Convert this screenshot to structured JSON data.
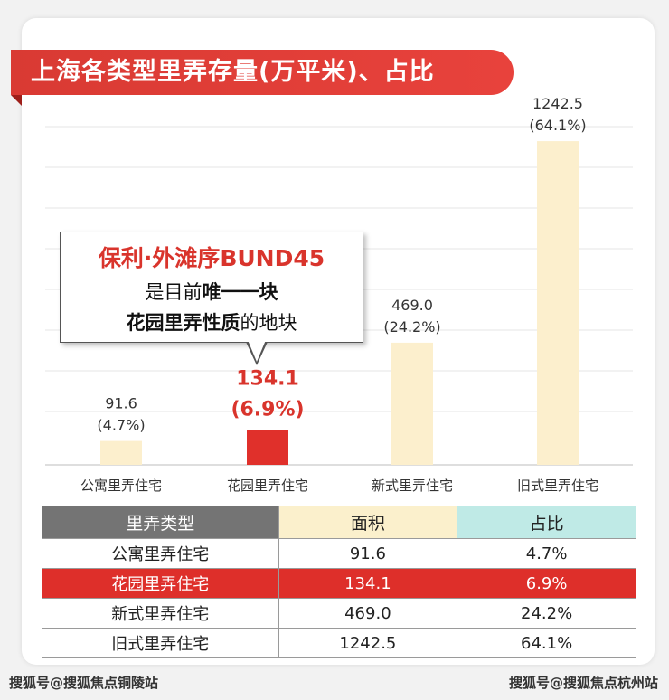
{
  "title": "上海各类型里弄存量(万平米)、占比",
  "callout": {
    "line1": "保利·外滩序BUND45",
    "line2_pre": "是目前",
    "line2_bold": "唯一一块",
    "line3_bold": "花园里弄性质",
    "line3_post": "的地块"
  },
  "chart_data": {
    "type": "bar",
    "title": "上海各类型里弄存量(万平米)、占比",
    "categories": [
      "公寓里弄住宅",
      "花园里弄住宅",
      "新式里弄住宅",
      "旧式里弄住宅"
    ],
    "values": [
      91.6,
      134.1,
      469.0,
      1242.5
    ],
    "value_labels": [
      "91.6",
      "134.1",
      "469.0",
      "1242.5"
    ],
    "share_labels": [
      "(4.7%)",
      "(6.9%)",
      "(24.2%)",
      "(64.1%)"
    ],
    "highlight_index": 1,
    "ylim": [
      0,
      1340
    ],
    "grid": true,
    "colors": {
      "bar": "#fcefcd",
      "highlight": "#e0302b",
      "label": "#333333",
      "highlight_label": "#d9342c",
      "grid": "#e6e6e6"
    }
  },
  "table": {
    "headers": [
      "里弄类型",
      "面积",
      "占比"
    ],
    "rows": [
      [
        "公寓里弄住宅",
        "91.6",
        "4.7%"
      ],
      [
        "花园里弄住宅",
        "134.1",
        "6.9%"
      ],
      [
        "新式里弄住宅",
        "469.0",
        "24.2%"
      ],
      [
        "旧式里弄住宅",
        "1242.5",
        "64.1%"
      ]
    ],
    "highlight_row": 1
  },
  "footer": {
    "left": "搜狐号@搜狐焦点铜陵站",
    "right": "搜狐号@搜狐焦点杭州站"
  }
}
